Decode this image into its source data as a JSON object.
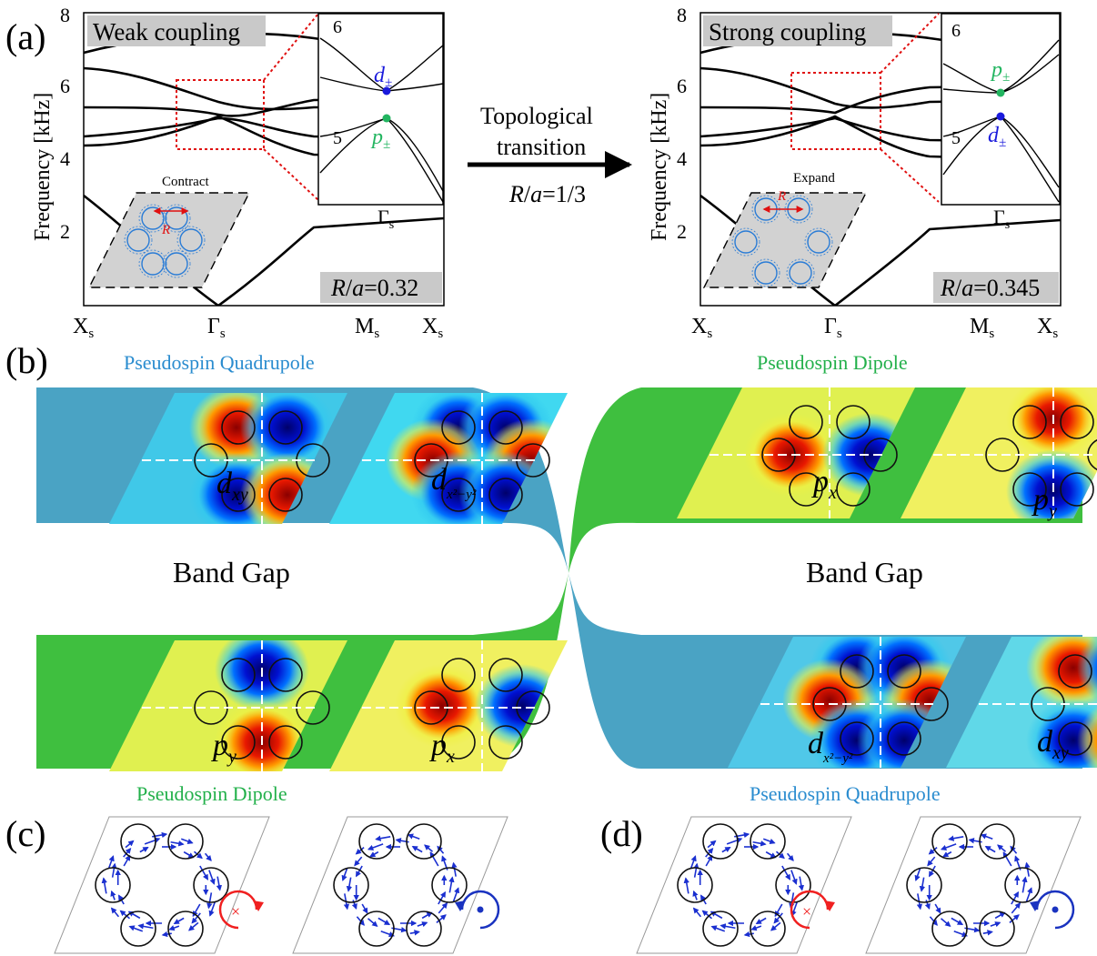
{
  "panel_a": {
    "label": "(a)",
    "left": {
      "banner": "Weak coupling",
      "ratio": "R/a=0.32",
      "ratio_R": "R",
      "ratio_a": "a",
      "ratio_val": "=0.32",
      "deform": "Contract",
      "r_label": "R",
      "inset_upper": "d",
      "inset_lower": "p",
      "inset_gamma": "Γ",
      "inset_yticks": [
        "6",
        "5"
      ]
    },
    "right": {
      "banner": "Strong coupling",
      "ratio_R": "R",
      "ratio_a": "a",
      "ratio_val": "=0.345",
      "deform": "Expand",
      "r_label": "R",
      "inset_upper": "p",
      "inset_lower": "d",
      "inset_gamma": "Γ",
      "inset_yticks": [
        "6",
        "5"
      ]
    },
    "ylabel": "Frequency [kHz]",
    "yticks": [
      "8",
      "6",
      "4",
      "2"
    ],
    "xticks": [
      "X",
      "Γ",
      "M",
      "X"
    ],
    "sub_s": "s",
    "pm": "±",
    "arrow_top1": "Topological",
    "arrow_top2": "transition",
    "arrow_bottom_R": "R",
    "arrow_bottom_a": "a",
    "arrow_bottom_val": "=1/3"
  },
  "panel_b": {
    "label": "(b)",
    "top_left_title": "Pseudospin Quadrupole",
    "top_right_title": "Pseudospin Dipole",
    "bottom_left_title": "Pseudospin Dipole",
    "bottom_right_title": "Pseudospin Quadrupole",
    "band_gap": "Band Gap",
    "mode_d": "d",
    "mode_p": "p",
    "sub_xy": "xy",
    "sub_x": "x",
    "sub_y": "y",
    "sub_x2y2": "x²−y²"
  },
  "panel_c": {
    "label": "(c)"
  },
  "panel_d": {
    "label": "(d)"
  },
  "colors": {
    "quadrupole_blue": "#4aa3c4",
    "dipole_green": "#3fbf3f",
    "title_blue": "#2a8ccf",
    "title_green": "#22b04a",
    "d_point": "#1a1adc",
    "p_point": "#22b560",
    "dashed_red": "#e01010",
    "arrow_blue": "#1a2fd0",
    "rot_red": "#f02020",
    "rot_blue": "#1a33c0"
  },
  "icons": [
    "rotation-cw-cross-icon",
    "rotation-ccw-dot-icon"
  ]
}
